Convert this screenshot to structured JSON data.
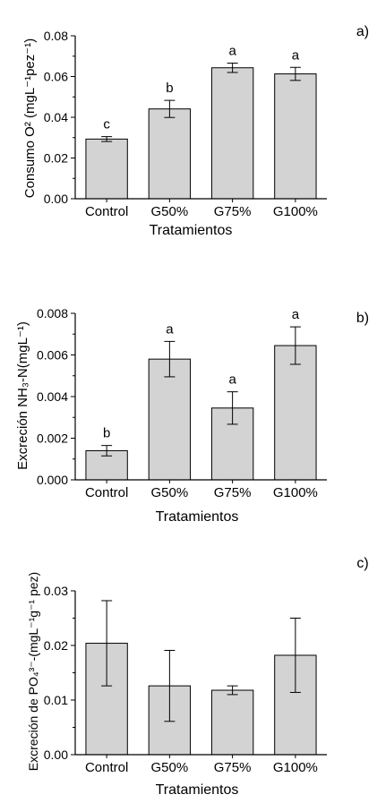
{
  "chart_data": [
    {
      "type": "bar",
      "panel_label": "a)",
      "categories": [
        "Control",
        "G50%",
        "G75%",
        "G100%"
      ],
      "values": [
        0.0293,
        0.0441,
        0.0643,
        0.0613
      ],
      "errors": [
        0.0012,
        0.0042,
        0.0023,
        0.0032
      ],
      "letters": [
        "c",
        "b",
        "a",
        "a"
      ],
      "xlabel": "Tratamientos",
      "ylabel": "Consumo O² (mgL⁻¹pez⁻¹)",
      "ylim": [
        0,
        0.08
      ],
      "yticks": [
        0.0,
        0.02,
        0.04,
        0.06,
        0.08
      ],
      "ytick_labels": [
        "0.00",
        "0.02",
        "0.04",
        "0.06",
        "0.08"
      ],
      "bar_color": "#d3d3d3",
      "grid": false
    },
    {
      "type": "bar",
      "panel_label": "b)",
      "categories": [
        "Control",
        "G50%",
        "G75%",
        "G100%"
      ],
      "values": [
        0.0014,
        0.0058,
        0.00345,
        0.00645
      ],
      "errors": [
        0.00025,
        0.00085,
        0.00078,
        0.0009
      ],
      "letters": [
        "b",
        "a",
        "a",
        "a"
      ],
      "xlabel": "Tratamientos",
      "ylabel": "Excreción NH₃-N(mgL⁻¹)",
      "ylim": [
        0,
        0.008
      ],
      "yticks": [
        0.0,
        0.002,
        0.004,
        0.006,
        0.008
      ],
      "ytick_labels": [
        "0.000",
        "0.002",
        "0.004",
        "0.006",
        "0.008"
      ],
      "bar_color": "#d3d3d3",
      "grid": false
    },
    {
      "type": "bar",
      "panel_label": "c)",
      "categories": [
        "Control",
        "G50%",
        "G75%",
        "G100%"
      ],
      "values": [
        0.0204,
        0.0126,
        0.0118,
        0.0182
      ],
      "errors": [
        0.0078,
        0.0065,
        0.0008,
        0.0068
      ],
      "letters": [
        "",
        "",
        "",
        ""
      ],
      "xlabel": "Tratamientos",
      "ylabel": "Excreción de PO₄³⁻-(mgL⁻¹g⁻¹ pez)",
      "ylim": [
        0,
        0.03
      ],
      "yticks": [
        0.0,
        0.01,
        0.02,
        0.03
      ],
      "ytick_labels": [
        "0.00",
        "0.01",
        "0.02",
        "0.03"
      ],
      "bar_color": "#d3d3d3",
      "grid": false
    }
  ]
}
